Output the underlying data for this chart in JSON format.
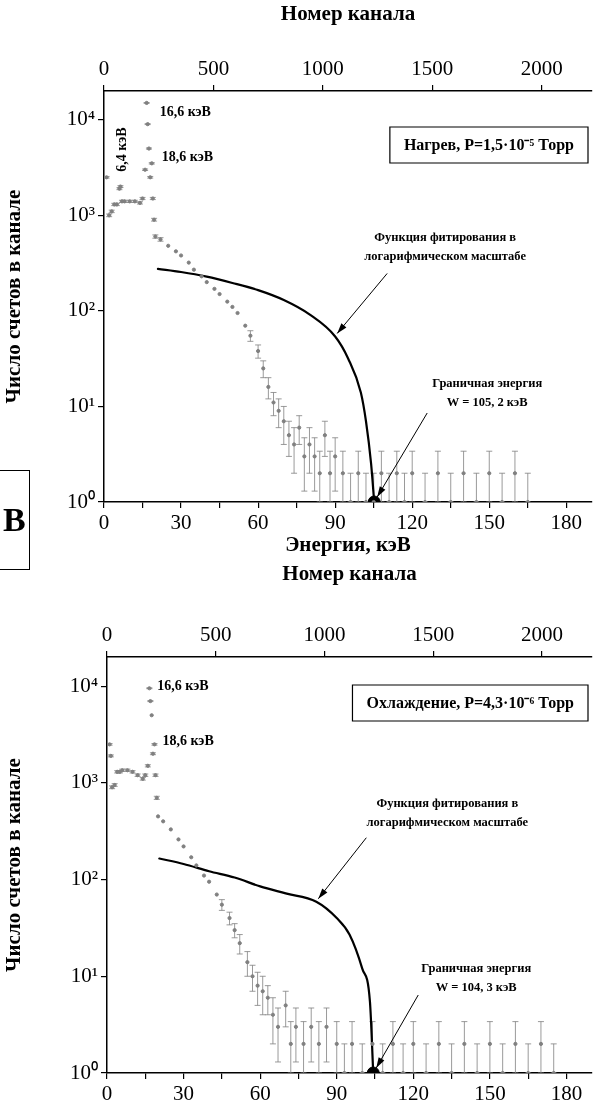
{
  "chart_data": [
    {
      "type": "scatter",
      "xlabel": "Энергия, кэВ",
      "ylabel": "Число счетов в канале",
      "x2label": "Номер канала",
      "log": true,
      "grid": false,
      "legend": false,
      "marker": "circle",
      "line_style": "solid",
      "xlim": [
        0,
        190
      ],
      "xticks": [
        0,
        {
          "value": 15,
          "label": null
        },
        30,
        {
          "value": 45,
          "label": null
        },
        60,
        {
          "value": 75,
          "label": null
        },
        90,
        {
          "value": 105,
          "label": null
        },
        120,
        {
          "value": 135,
          "label": null
        },
        150,
        {
          "value": 165,
          "label": null
        },
        180
      ],
      "x2lim": [
        0,
        2230
      ],
      "x2ticks": [
        0,
        500,
        1000,
        1500,
        2000
      ],
      "ylim": [
        1,
        20000
      ],
      "yticks": [
        {
          "value": 1,
          "label": "10⁰"
        },
        {
          "value": 10,
          "label": "10¹"
        },
        {
          "value": 100,
          "label": "10²"
        },
        {
          "value": 1000,
          "label": "10³"
        },
        {
          "value": 10000,
          "label": "10⁴"
        }
      ],
      "series": [
        {
          "color": "#808080",
          "x": [
            1,
            2,
            3,
            4,
            5,
            6,
            6.4,
            7,
            8,
            10,
            12,
            14,
            15,
            16,
            16.6,
            17,
            17.5,
            18,
            18.6,
            19,
            19.5,
            20,
            22,
            25,
            28,
            30,
            33,
            35,
            38,
            40,
            43,
            45,
            48,
            50,
            52,
            55,
            57,
            60,
            62,
            64,
            66,
            68,
            70,
            72,
            74,
            76,
            78,
            80,
            82,
            84,
            86,
            88,
            90,
            93,
            96,
            99,
            102,
            105,
            108,
            111,
            114,
            117,
            120,
            125,
            130,
            135,
            140,
            145,
            150,
            155,
            160,
            165
          ],
          "values": [
            2500,
            1000,
            1100,
            1300,
            1300,
            1900,
            2000,
            1400,
            1400,
            1400,
            1400,
            1350,
            1500,
            3000,
            15000,
            9000,
            5000,
            2500,
            3500,
            1500,
            900,
            600,
            560,
            480,
            420,
            380,
            320,
            270,
            230,
            200,
            170,
            150,
            125,
            110,
            95,
            70,
            55,
            38,
            25,
            16,
            11,
            9,
            7,
            5,
            4,
            6,
            3,
            4,
            3,
            2,
            5,
            2,
            3,
            2,
            1,
            2,
            1,
            1,
            2,
            1,
            2,
            1,
            2,
            1,
            2,
            1,
            2,
            1,
            2,
            1,
            2,
            1
          ],
          "errors": [
            50,
            32,
            33,
            36,
            36,
            44,
            45,
            37,
            37,
            37,
            37,
            37,
            39,
            55,
            122,
            95,
            71,
            50,
            59,
            39,
            30,
            24,
            24,
            null,
            null,
            null,
            null,
            null,
            null,
            null,
            null,
            null,
            null,
            null,
            null,
            null,
            7,
            6,
            5,
            4,
            3,
            3,
            3,
            2,
            2,
            2,
            [
              1.3,
              4.7
            ],
            2,
            [
              1.3,
              4.7
            ],
            [
              1,
              3.4
            ],
            2,
            [
              1,
              3.4
            ],
            [
              1.3,
              4.7
            ],
            [
              1,
              3.4
            ],
            [
              1,
              2
            ],
            [
              1,
              3.4
            ],
            [
              1,
              2
            ],
            [
              1,
              2
            ],
            [
              1,
              3.4
            ],
            [
              1,
              2
            ],
            [
              1,
              3.4
            ],
            [
              1,
              2
            ],
            [
              1,
              3.4
            ],
            [
              1,
              2
            ],
            [
              1,
              3.4
            ],
            [
              1,
              2
            ],
            [
              1,
              3.4
            ],
            [
              1,
              2
            ],
            [
              1,
              3.4
            ],
            [
              1,
              2
            ],
            [
              1,
              3.4
            ],
            [
              1,
              2
            ]
          ]
        },
        {
          "type": "line",
          "marker": "none",
          "color": "#000000",
          "x": [
            21,
            30,
            40,
            50,
            60,
            70,
            80,
            90,
            95,
            100,
            102,
            104,
            105.2
          ],
          "values": [
            275,
            255,
            228,
            196,
            165,
            130,
            92,
            54,
            32,
            14,
            7,
            2.5,
            1
          ]
        },
        {
          "color": "#000000",
          "x": [
            105.2
          ],
          "values": [
            1
          ]
        }
      ],
      "annotations": [
        "Нагрев, P=1,5·10⁻⁵ Торр",
        "В",
        {
          "text": "6,4 кэВ",
          "x": 6.4,
          "y": 2000
        },
        {
          "text": "16,6 кэВ",
          "x": 16.6,
          "y": 15000
        },
        {
          "text": "18,6 кэВ",
          "x": 18.6,
          "y": 3500
        },
        {
          "text": "Функция фитирования в логарифмическом масштабе",
          "x": 90,
          "y": 54
        },
        {
          "text": "Граничная энергия W = 105, 2 кэВ",
          "x": 105.2,
          "y": 1
        }
      ]
    },
    {
      "type": "scatter",
      "ylabel": "Число счетов в канале",
      "x2label": "Номер канала",
      "log": true,
      "grid": false,
      "legend": false,
      "marker": "circle",
      "line_style": "solid",
      "xlim": [
        0,
        190
      ],
      "xticks": [
        0,
        {
          "value": 15,
          "label": null
        },
        30,
        {
          "value": 45,
          "label": null
        },
        60,
        {
          "value": 75,
          "label": null
        },
        90,
        {
          "value": 105,
          "label": null
        },
        120,
        {
          "value": 135,
          "label": null
        },
        150,
        {
          "value": 165,
          "label": null
        },
        180
      ],
      "x2lim": [
        0,
        2230
      ],
      "x2ticks": [
        0,
        500,
        1000,
        1500,
        2000
      ],
      "ylim": [
        1,
        20000
      ],
      "yticks": [
        {
          "value": 1,
          "label": "10⁰"
        },
        {
          "value": 10,
          "label": "10¹"
        },
        {
          "value": 100,
          "label": "10²"
        },
        {
          "value": 1000,
          "label": "10³"
        },
        {
          "value": 10000,
          "label": "10⁴"
        }
      ],
      "series": [
        {
          "color": "#808080",
          "x": [
            1,
            1.5,
            2,
            3,
            4,
            5,
            6,
            8,
            10,
            12,
            14,
            15,
            16,
            16.6,
            17,
            17.5,
            18,
            18.6,
            19,
            19.5,
            20,
            22,
            25,
            28,
            30,
            33,
            35,
            38,
            40,
            43,
            45,
            48,
            50,
            52,
            55,
            57,
            59,
            61,
            63,
            65,
            67,
            70,
            72,
            74,
            77,
            80,
            83,
            86,
            90,
            93,
            96,
            100,
            104,
            108,
            112,
            116,
            120,
            125,
            130,
            135,
            140,
            145,
            150,
            155,
            160,
            165,
            170,
            175
          ],
          "values": [
            2500,
            1900,
            900,
            950,
            1300,
            1300,
            1350,
            1350,
            1300,
            1200,
            1100,
            1200,
            1500,
            9500,
            7000,
            5000,
            2000,
            2500,
            1200,
            700,
            450,
            400,
            330,
            260,
            220,
            170,
            140,
            110,
            95,
            70,
            55,
            40,
            30,
            22,
            14,
            10,
            8,
            7,
            6,
            4,
            3,
            5,
            2,
            3,
            2,
            3,
            2,
            3,
            2,
            1,
            2,
            1,
            2,
            1,
            2,
            1,
            2,
            1,
            2,
            1,
            2,
            1,
            2,
            1,
            2,
            1,
            2,
            1
          ],
          "errors": [
            50,
            44,
            30,
            31,
            36,
            36,
            37,
            37,
            36,
            35,
            33,
            35,
            39,
            97,
            84,
            null,
            45,
            50,
            35,
            26,
            null,
            null,
            null,
            null,
            null,
            null,
            null,
            null,
            null,
            null,
            7,
            6,
            5,
            5,
            4,
            3,
            3,
            3,
            2,
            2,
            [
              1.3,
              4.7
            ],
            2,
            [
              1,
              3.4
            ],
            [
              1.3,
              4.7
            ],
            [
              1,
              3.4
            ],
            [
              1.3,
              4.7
            ],
            [
              1,
              3.4
            ],
            [
              1.3,
              4.7
            ],
            [
              1,
              3.4
            ],
            [
              1,
              2
            ],
            [
              1,
              3.4
            ],
            [
              1,
              2
            ],
            [
              1,
              3.4
            ],
            [
              1,
              2
            ],
            [
              1,
              3.4
            ],
            [
              1,
              2
            ],
            [
              1,
              3.4
            ],
            [
              1,
              2
            ],
            [
              1,
              3.4
            ],
            [
              1,
              2
            ],
            [
              1,
              3.4
            ],
            [
              1,
              2
            ],
            [
              1,
              3.4
            ],
            [
              1,
              2
            ],
            [
              1,
              3.4
            ],
            [
              1,
              2
            ],
            [
              1,
              3.4
            ],
            [
              1,
              2
            ]
          ]
        },
        {
          "type": "line",
          "marker": "none",
          "color": "#000000",
          "x": [
            20.5,
            30,
            40,
            50,
            60,
            70,
            82,
            90,
            95,
            100,
            103,
            104.3
          ],
          "values": [
            165,
            145,
            122,
            105,
            85,
            72,
            59,
            40,
            27,
            12,
            5.5,
            1
          ]
        },
        {
          "color": "#000000",
          "x": [
            104.3
          ],
          "values": [
            1
          ]
        }
      ],
      "annotations": [
        "Охлаждение, P=4,3·10⁻⁶ Торр",
        {
          "text": "16,6 кэВ",
          "x": 16.6,
          "y": 9500
        },
        {
          "text": "18,6 кэВ",
          "x": 18.6,
          "y": 2500
        },
        {
          "text": "Функция фитирования в логарифмическом масштабе",
          "x": 82,
          "y": 59
        },
        {
          "text": "Граничная энергия W = 104, 3 кэВ",
          "x": 104.3,
          "y": 1
        }
      ]
    }
  ]
}
